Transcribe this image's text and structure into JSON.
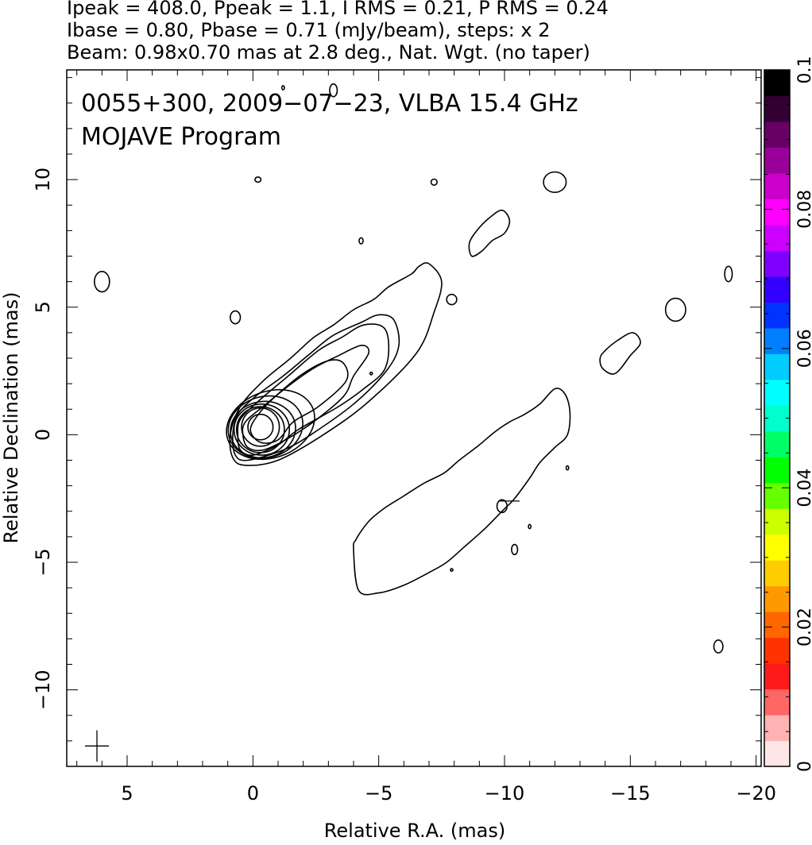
{
  "header": {
    "line1": "Ipeak = 408.0, Ppeak = 1.1, I RMS = 0.21, P RMS = 0.24",
    "line2": "Ibase = 0.80, Pbase = 0.71 (mJy/beam), steps: x 2",
    "line3": "Beam: 0.98x0.70 mas at 2.8 deg., Nat. Wgt. (no taper)"
  },
  "plot": {
    "title_line1": "0055+300, 2009−07−23, VLBA 15.4 GHz",
    "title_line2": "MOJAVE Program",
    "xlabel": "Relative R.A. (mas)",
    "ylabel": "Relative Declination (mas)"
  },
  "chart_data": {
    "type": "contour",
    "x_axis": {
      "label": "Relative R.A. (mas)",
      "range": [
        7.4,
        -20.2
      ],
      "reversed": true,
      "major_ticks": [
        5,
        0,
        -5,
        -10,
        -15,
        -20
      ],
      "tick_labels": [
        "5",
        "0",
        "−5",
        "−10",
        "−15",
        "−20"
      ]
    },
    "y_axis": {
      "label": "Relative Declination (mas)",
      "range": [
        -13.0,
        14.3
      ],
      "major_ticks": [
        10,
        5,
        0,
        -5,
        -10
      ],
      "tick_labels": [
        "10",
        "5",
        "0",
        "−5",
        "−10"
      ]
    },
    "colorbar": {
      "range": [
        0,
        0.1
      ],
      "tick_values": [
        0,
        0.02,
        0.04,
        0.06,
        0.08,
        0.1
      ],
      "tick_labels": [
        "0",
        "0.02",
        "0.04",
        "0.06",
        "0.08",
        "0.1"
      ],
      "colors": [
        "#ffe6e6",
        "#ffb3b3",
        "#ff6666",
        "#ff1a1a",
        "#ff3300",
        "#ff6600",
        "#ff9900",
        "#ffcc00",
        "#ffff00",
        "#ccff00",
        "#66ff00",
        "#00ff00",
        "#00ff66",
        "#00ffcc",
        "#00ffff",
        "#00ccff",
        "#0080ff",
        "#0033ff",
        "#3300ff",
        "#8000ff",
        "#cc00ff",
        "#ff00ff",
        "#cc00cc",
        "#990099",
        "#660066",
        "#330033",
        "#000000"
      ]
    },
    "peak": {
      "ra": -0.3,
      "dec": 0.3
    },
    "intensity_steps": [
      0.8,
      1.6,
      3.2,
      6.4,
      12.8,
      25.6,
      51.2,
      102.4,
      204.8
    ],
    "core_contours": [
      {
        "cx": -0.3,
        "cy": 0.3,
        "rx": 0.5,
        "ry": 0.5,
        "rot": 0
      },
      {
        "cx": -0.3,
        "cy": 0.3,
        "rx": 0.75,
        "ry": 0.75,
        "rot": 0
      },
      {
        "cx": -0.3,
        "cy": 0.2,
        "rx": 0.95,
        "ry": 0.9,
        "rot": 0
      },
      {
        "cx": -0.35,
        "cy": 0.2,
        "rx": 1.1,
        "ry": 1.0,
        "rot": 0
      },
      {
        "cx": -0.4,
        "cy": 0.2,
        "rx": 1.3,
        "ry": 1.1,
        "rot": -10
      },
      {
        "cx": -0.5,
        "cy": 0.3,
        "rx": 1.5,
        "ry": 1.2,
        "rot": -15
      },
      {
        "cx": -0.7,
        "cy": 0.4,
        "rx": 1.8,
        "ry": 1.3,
        "rot": -20
      }
    ],
    "jet_contours": [
      [
        [
          0.9,
          0.0
        ],
        [
          0.8,
          -0.9
        ],
        [
          0.3,
          -1.2
        ],
        [
          -1.0,
          -1.0
        ],
        [
          -2.8,
          0.0
        ],
        [
          -4.6,
          1.3
        ],
        [
          -6.5,
          3.2
        ],
        [
          -7.2,
          4.8
        ],
        [
          -7.5,
          6.0
        ],
        [
          -7.0,
          6.7
        ],
        [
          -6.6,
          6.6
        ],
        [
          -6.3,
          6.3
        ],
        [
          -5.4,
          5.8
        ],
        [
          -4.8,
          5.3
        ],
        [
          -4.0,
          4.9
        ],
        [
          -3.2,
          4.3
        ],
        [
          -2.4,
          3.8
        ],
        [
          -1.5,
          3.0
        ],
        [
          -0.4,
          2.1
        ],
        [
          0.5,
          1.1
        ],
        [
          0.9,
          0.0
        ]
      ],
      [
        [
          0.8,
          0.0
        ],
        [
          0.7,
          -0.8
        ],
        [
          0.2,
          -1.0
        ],
        [
          -1.2,
          -0.6
        ],
        [
          -2.3,
          0.0
        ],
        [
          -4.0,
          1.2
        ],
        [
          -5.3,
          2.5
        ],
        [
          -5.8,
          3.5
        ],
        [
          -5.6,
          4.5
        ],
        [
          -5.0,
          4.7
        ],
        [
          -4.3,
          4.4
        ],
        [
          -3.2,
          3.9
        ],
        [
          -2.3,
          3.2
        ],
        [
          -1.2,
          2.3
        ],
        [
          -0.1,
          1.5
        ],
        [
          0.6,
          0.8
        ],
        [
          0.8,
          0.0
        ]
      ],
      [
        [
          0.6,
          0.0
        ],
        [
          0.5,
          -0.6
        ],
        [
          0.0,
          -0.8
        ],
        [
          -1.0,
          -0.4
        ],
        [
          -1.8,
          0.2
        ],
        [
          -3.4,
          1.1
        ],
        [
          -4.4,
          1.8
        ],
        [
          -5.2,
          2.5
        ],
        [
          -5.4,
          3.4
        ],
        [
          -5.2,
          4.2
        ],
        [
          -4.4,
          4.3
        ],
        [
          -3.5,
          3.8
        ],
        [
          -2.6,
          3.3
        ],
        [
          -1.4,
          2.3
        ],
        [
          -0.2,
          1.3
        ],
        [
          0.5,
          0.6
        ],
        [
          0.6,
          0.0
        ]
      ],
      [
        [
          0.4,
          0.0
        ],
        [
          0.2,
          -0.5
        ],
        [
          -0.4,
          -0.6
        ],
        [
          -1.3,
          -0.2
        ],
        [
          -2.4,
          0.5
        ],
        [
          -3.6,
          1.5
        ],
        [
          -4.0,
          2.3
        ],
        [
          -4.6,
          3.2
        ],
        [
          -4.3,
          3.5
        ],
        [
          -3.4,
          3.1
        ],
        [
          -2.4,
          2.6
        ],
        [
          -1.4,
          1.9
        ],
        [
          -0.4,
          1.1
        ],
        [
          0.3,
          0.5
        ],
        [
          0.4,
          0.0
        ]
      ],
      [
        [
          0.1,
          0.2
        ],
        [
          -0.3,
          -0.3
        ],
        [
          -1.0,
          -0.2
        ],
        [
          -1.6,
          0.5
        ],
        [
          -2.6,
          1.1
        ],
        [
          -3.7,
          2.1
        ],
        [
          -3.6,
          2.8
        ],
        [
          -3.0,
          2.9
        ],
        [
          -2.0,
          2.4
        ],
        [
          -1.0,
          1.6
        ],
        [
          -0.3,
          0.9
        ],
        [
          0.1,
          0.2
        ]
      ]
    ],
    "counterjet_contour": [
      [
        -4.0,
        -4.5
      ],
      [
        -4.2,
        -6.1
      ],
      [
        -5.0,
        -6.2
      ],
      [
        -6.0,
        -5.9
      ],
      [
        -7.0,
        -5.4
      ],
      [
        -7.7,
        -5.0
      ],
      [
        -8.4,
        -4.4
      ],
      [
        -9.2,
        -3.7
      ],
      [
        -9.9,
        -3.0
      ],
      [
        -10.4,
        -2.5
      ],
      [
        -11.0,
        -1.7
      ],
      [
        -11.4,
        -1.1
      ],
      [
        -12.0,
        -0.5
      ],
      [
        -12.5,
        0.0
      ],
      [
        -12.6,
        0.9
      ],
      [
        -12.4,
        1.6
      ],
      [
        -12.0,
        1.8
      ],
      [
        -11.4,
        1.2
      ],
      [
        -10.8,
        0.8
      ],
      [
        -10.2,
        0.5
      ],
      [
        -9.6,
        0.1
      ],
      [
        -9.0,
        -0.4
      ],
      [
        -8.2,
        -1.0
      ],
      [
        -7.6,
        -1.5
      ],
      [
        -6.8,
        -1.9
      ],
      [
        -6.0,
        -2.4
      ],
      [
        -5.2,
        -2.9
      ],
      [
        -4.6,
        -3.4
      ],
      [
        -4.1,
        -4.1
      ],
      [
        -4.0,
        -4.5
      ]
    ],
    "isolated_contours": [
      {
        "cx": 6.0,
        "cy": 6.0,
        "rx": 0.3,
        "ry": 0.4,
        "rot": 0
      },
      {
        "cx": 0.7,
        "cy": 4.6,
        "rx": 0.2,
        "ry": 0.25,
        "rot": 0
      },
      {
        "cx": -3.2,
        "cy": 13.5,
        "rx": 0.15,
        "ry": 0.25,
        "rot": 0
      },
      {
        "cx": -1.2,
        "cy": 13.6,
        "rx": 0.05,
        "ry": 0.08,
        "rot": 0
      },
      {
        "cx": -0.2,
        "cy": 10.0,
        "rx": 0.12,
        "ry": 0.1,
        "rot": 0
      },
      {
        "cx": -7.2,
        "cy": 9.9,
        "rx": 0.12,
        "ry": 0.12,
        "rot": 0
      },
      {
        "cx": -4.3,
        "cy": 7.6,
        "rx": 0.08,
        "ry": 0.12,
        "rot": 0
      },
      {
        "cx": -12.0,
        "cy": 9.9,
        "rx": 0.45,
        "ry": 0.4,
        "rot": 0
      },
      {
        "cx": -7.9,
        "cy": 5.3,
        "rx": 0.2,
        "ry": 0.2,
        "rot": 0
      },
      {
        "cx": -16.8,
        "cy": 4.9,
        "rx": 0.4,
        "ry": 0.45,
        "rot": 0
      },
      {
        "cx": -18.9,
        "cy": 6.3,
        "rx": 0.15,
        "ry": 0.3,
        "rot": 0
      },
      {
        "cx": -9.9,
        "cy": -2.8,
        "rx": 0.2,
        "ry": 0.25,
        "rot": 0
      },
      {
        "cx": -11.0,
        "cy": -3.6,
        "rx": 0.05,
        "ry": 0.08,
        "rot": 0
      },
      {
        "cx": -10.4,
        "cy": -4.5,
        "rx": 0.12,
        "ry": 0.2,
        "rot": 0
      },
      {
        "cx": -12.5,
        "cy": -1.3,
        "rx": 0.05,
        "ry": 0.08,
        "rot": 0
      },
      {
        "cx": -7.9,
        "cy": -5.3,
        "rx": 0.05,
        "ry": 0.05,
        "rot": 0
      },
      {
        "cx": -18.5,
        "cy": -8.3,
        "rx": 0.18,
        "ry": 0.25,
        "rot": 0
      },
      {
        "cx": -4.7,
        "cy": 2.4,
        "rx": 0.05,
        "ry": 0.05,
        "rot": 0
      }
    ],
    "blob_contours": [
      [
        [
          -8.6,
          7.5
        ],
        [
          -8.9,
          8.0
        ],
        [
          -9.4,
          8.5
        ],
        [
          -9.9,
          8.8
        ],
        [
          -10.2,
          8.4
        ],
        [
          -10.0,
          7.9
        ],
        [
          -9.5,
          7.6
        ],
        [
          -9.1,
          7.2
        ],
        [
          -8.7,
          7.0
        ],
        [
          -8.6,
          7.5
        ]
      ],
      [
        [
          -13.8,
          3.0
        ],
        [
          -13.9,
          2.6
        ],
        [
          -14.4,
          2.4
        ],
        [
          -15.0,
          3.1
        ],
        [
          -15.4,
          3.6
        ],
        [
          -15.1,
          4.0
        ],
        [
          -14.5,
          3.7
        ],
        [
          -14.0,
          3.3
        ],
        [
          -13.8,
          3.0
        ]
      ]
    ],
    "beam": {
      "ra": 6.2,
      "dec": -12.2,
      "major": 0.98,
      "minor": 0.7,
      "pa": 2.8
    },
    "marks": [
      {
        "ra": -9.8,
        "dec": -2.6,
        "len": 0.4
      }
    ]
  }
}
